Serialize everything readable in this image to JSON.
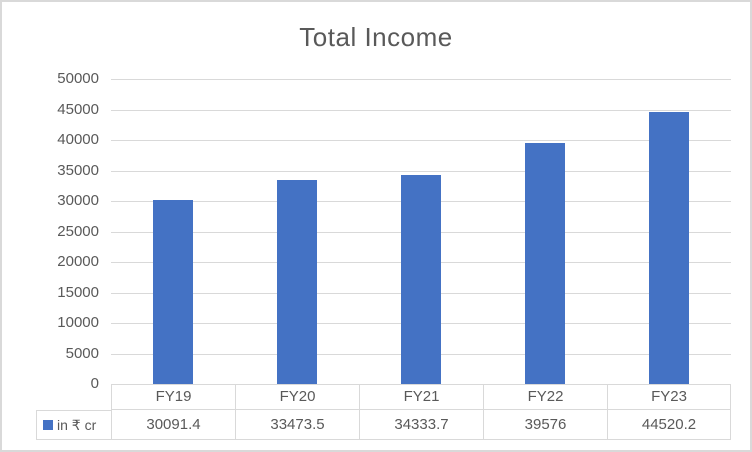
{
  "chart_data": {
    "type": "bar",
    "title": "Total Income",
    "categories": [
      "FY19",
      "FY20",
      "FY21",
      "FY22",
      "FY23"
    ],
    "series": [
      {
        "name": "in ₹ cr",
        "color": "#4472C4",
        "values": [
          30091.4,
          33473.5,
          34333.7,
          39576,
          44520.2
        ]
      }
    ],
    "xlabel": "",
    "ylabel": "",
    "ylim": [
      0,
      50000
    ],
    "yticks": [
      0,
      5000,
      10000,
      15000,
      20000,
      25000,
      30000,
      35000,
      40000,
      45000,
      50000
    ],
    "grid": true,
    "legend_position": "data-table-left",
    "data_table_shown": true
  },
  "colors": {
    "bar": "#4472C4",
    "title_text": "#595959",
    "axis_text": "#595959",
    "table_text": "#595959",
    "gridline": "#D9D9D9",
    "table_border": "#D9D9D9",
    "frame_border": "#D9D9D9",
    "background": "#FFFFFF"
  }
}
